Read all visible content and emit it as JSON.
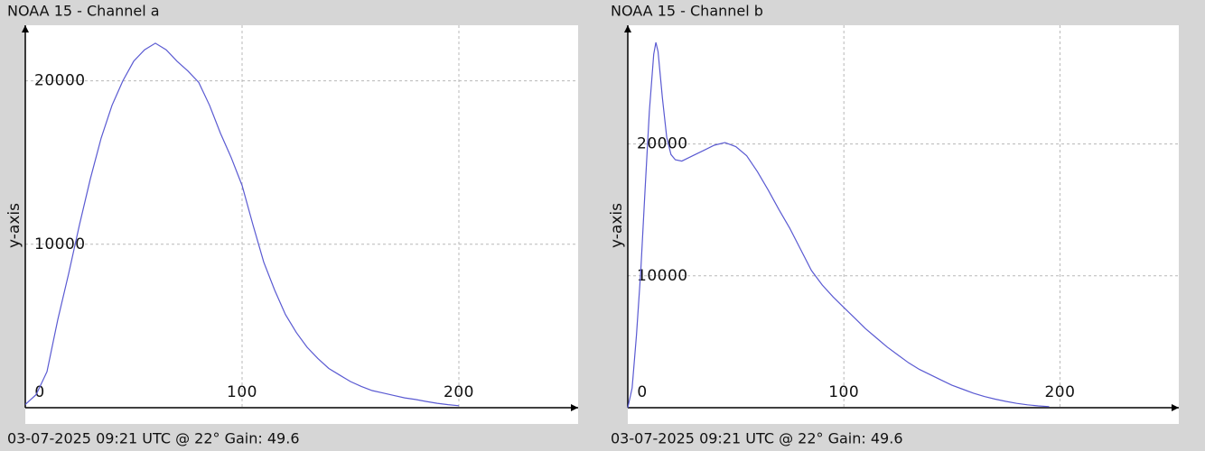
{
  "chart_data": [
    {
      "type": "line",
      "title": "NOAA 15 - Channel a",
      "ylabel": "y-axis",
      "footer": "03-07-2025 09:21 UTC @ 22° Gain: 49.6",
      "color": "#5a5ad2",
      "grid": true,
      "xlim": [
        0,
        255
      ],
      "ylim": [
        0,
        23400
      ],
      "xticks": [
        0,
        100,
        200
      ],
      "yticks": [
        10000,
        20000
      ],
      "x": [
        0,
        5,
        10,
        15,
        20,
        25,
        30,
        35,
        40,
        45,
        50,
        55,
        60,
        65,
        70,
        75,
        80,
        85,
        90,
        95,
        100,
        105,
        110,
        115,
        120,
        125,
        130,
        135,
        140,
        145,
        150,
        155,
        160,
        165,
        170,
        175,
        180,
        185,
        190,
        195,
        200
      ],
      "values": [
        200,
        800,
        2200,
        5400,
        8200,
        11200,
        14000,
        16500,
        18500,
        20000,
        21200,
        21900,
        22300,
        21900,
        21200,
        20600,
        19900,
        18500,
        16800,
        15300,
        13600,
        11200,
        8900,
        7200,
        5700,
        4600,
        3700,
        3000,
        2400,
        2000,
        1600,
        1300,
        1050,
        900,
        750,
        600,
        500,
        380,
        270,
        190,
        120
      ]
    },
    {
      "type": "line",
      "title": "NOAA 15 - Channel b",
      "ylabel": "y-axis",
      "footer": "03-07-2025 09:21 UTC @ 22° Gain: 49.6",
      "color": "#5a5ad2",
      "grid": true,
      "xlim": [
        0,
        255
      ],
      "ylim": [
        0,
        29000
      ],
      "xticks": [
        0,
        100,
        200
      ],
      "yticks": [
        10000,
        20000
      ],
      "x": [
        0,
        2,
        4,
        6,
        8,
        10,
        12,
        13,
        14,
        16,
        18,
        20,
        22,
        25,
        30,
        35,
        40,
        45,
        50,
        55,
        60,
        65,
        70,
        75,
        80,
        85,
        90,
        95,
        100,
        105,
        110,
        115,
        120,
        125,
        130,
        135,
        140,
        145,
        150,
        155,
        160,
        165,
        170,
        175,
        180,
        185,
        190,
        195
      ],
      "values": [
        0,
        1500,
        5500,
        10400,
        16500,
        22500,
        26800,
        27700,
        27000,
        23500,
        20500,
        19200,
        18800,
        18700,
        19100,
        19500,
        19900,
        20100,
        19800,
        19100,
        17900,
        16500,
        15000,
        13600,
        12000,
        10400,
        9300,
        8400,
        7600,
        6800,
        6000,
        5300,
        4600,
        4000,
        3400,
        2900,
        2500,
        2100,
        1700,
        1400,
        1100,
        850,
        650,
        480,
        330,
        220,
        140,
        80
      ]
    }
  ]
}
